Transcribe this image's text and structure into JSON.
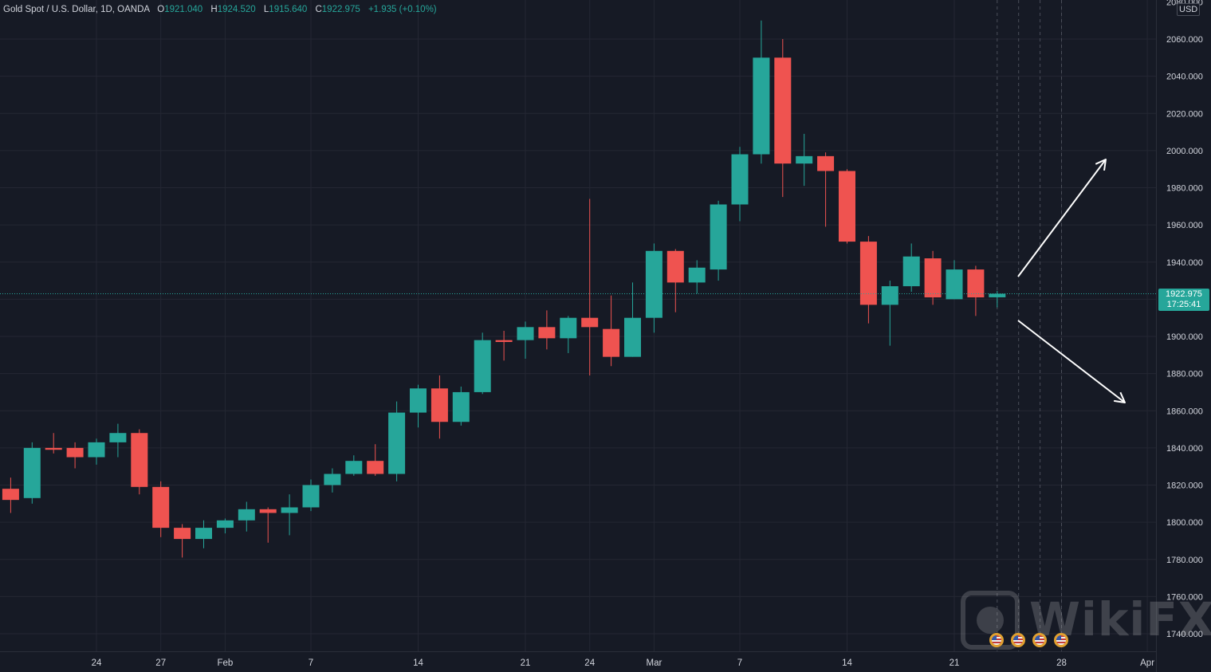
{
  "legend": {
    "symbol": "Gold Spot / U.S. Dollar, 1D, OANDA",
    "o_label": "O",
    "o_value": "1921.040",
    "h_label": "H",
    "h_value": "1924.520",
    "l_label": "L",
    "l_value": "1915.640",
    "c_label": "C",
    "c_value": "1922.975",
    "change": "+1.935 (+0.10%)"
  },
  "price_axis": {
    "currency": "USD",
    "last_price": "1922.975",
    "countdown": "17:25:41"
  },
  "watermark": {
    "text": "WikiFX"
  },
  "colors": {
    "background": "#161a25",
    "up": "#26a69a",
    "down": "#ef5350",
    "grid": "#242733",
    "text": "#d1d4dc",
    "arrow": "#ffffff"
  },
  "chart_data": {
    "type": "candlestick",
    "symbol": "Gold Spot / U.S. Dollar",
    "interval": "1D",
    "ylim": [
      1730,
      2085
    ],
    "y_ticks": [
      1740,
      1760,
      1780,
      1800,
      1820,
      1840,
      1860,
      1880,
      1900,
      1920,
      1940,
      1960,
      1980,
      2000,
      2020,
      2040,
      2060
    ],
    "x_ticks": [
      {
        "label": "24",
        "date": "2022-01-24"
      },
      {
        "label": "27",
        "date": "2022-01-27"
      },
      {
        "label": "Feb",
        "date": "2022-02-01"
      },
      {
        "label": "7",
        "date": "2022-02-07"
      },
      {
        "label": "14",
        "date": "2022-02-14"
      },
      {
        "label": "21",
        "date": "2022-02-21"
      },
      {
        "label": "24",
        "date": "2022-02-24"
      },
      {
        "label": "Mar",
        "date": "2022-03-01"
      },
      {
        "label": "7",
        "date": "2022-03-07"
      },
      {
        "label": "14",
        "date": "2022-03-14"
      },
      {
        "label": "21",
        "date": "2022-03-21"
      },
      {
        "label": "28",
        "date": "2022-03-28"
      },
      {
        "label": "Apr",
        "date": "2022-04-01"
      }
    ],
    "last_price": 1922.975,
    "candles": [
      {
        "date": "2022-01-18",
        "o": 1818,
        "h": 1824,
        "l": 1805,
        "c": 1812
      },
      {
        "date": "2022-01-19",
        "o": 1813,
        "h": 1843,
        "l": 1810,
        "c": 1840
      },
      {
        "date": "2022-01-20",
        "o": 1840,
        "h": 1848,
        "l": 1837,
        "c": 1839
      },
      {
        "date": "2022-01-21",
        "o": 1840,
        "h": 1843,
        "l": 1829,
        "c": 1835
      },
      {
        "date": "2022-01-24",
        "o": 1835,
        "h": 1845,
        "l": 1831,
        "c": 1843
      },
      {
        "date": "2022-01-25",
        "o": 1843,
        "h": 1853,
        "l": 1835,
        "c": 1848
      },
      {
        "date": "2022-01-26",
        "o": 1848,
        "h": 1850,
        "l": 1815,
        "c": 1819
      },
      {
        "date": "2022-01-27",
        "o": 1819,
        "h": 1822,
        "l": 1792,
        "c": 1797
      },
      {
        "date": "2022-01-28",
        "o": 1797,
        "h": 1799,
        "l": 1781,
        "c": 1791
      },
      {
        "date": "2022-01-31",
        "o": 1791,
        "h": 1801,
        "l": 1786,
        "c": 1797
      },
      {
        "date": "2022-02-01",
        "o": 1797,
        "h": 1802,
        "l": 1794,
        "c": 1801
      },
      {
        "date": "2022-02-02",
        "o": 1801,
        "h": 1811,
        "l": 1795,
        "c": 1807
      },
      {
        "date": "2022-02-03",
        "o": 1807,
        "h": 1808,
        "l": 1789,
        "c": 1805
      },
      {
        "date": "2022-02-04",
        "o": 1805,
        "h": 1815,
        "l": 1793,
        "c": 1808
      },
      {
        "date": "2022-02-07",
        "o": 1808,
        "h": 1823,
        "l": 1806,
        "c": 1820
      },
      {
        "date": "2022-02-08",
        "o": 1820,
        "h": 1829,
        "l": 1816,
        "c": 1826
      },
      {
        "date": "2022-02-09",
        "o": 1826,
        "h": 1836,
        "l": 1825,
        "c": 1833
      },
      {
        "date": "2022-02-10",
        "o": 1833,
        "h": 1842,
        "l": 1825,
        "c": 1826
      },
      {
        "date": "2022-02-11",
        "o": 1826,
        "h": 1865,
        "l": 1822,
        "c": 1859
      },
      {
        "date": "2022-02-14",
        "o": 1859,
        "h": 1874,
        "l": 1851,
        "c": 1872
      },
      {
        "date": "2022-02-15",
        "o": 1872,
        "h": 1879,
        "l": 1845,
        "c": 1854
      },
      {
        "date": "2022-02-16",
        "o": 1854,
        "h": 1873,
        "l": 1852,
        "c": 1870
      },
      {
        "date": "2022-02-17",
        "o": 1870,
        "h": 1902,
        "l": 1869,
        "c": 1898
      },
      {
        "date": "2022-02-18",
        "o": 1898,
        "h": 1903,
        "l": 1887,
        "c": 1897
      },
      {
        "date": "2022-02-21",
        "o": 1898,
        "h": 1908,
        "l": 1888,
        "c": 1905
      },
      {
        "date": "2022-02-22",
        "o": 1905,
        "h": 1914,
        "l": 1893,
        "c": 1899
      },
      {
        "date": "2022-02-23",
        "o": 1899,
        "h": 1911,
        "l": 1891,
        "c": 1910
      },
      {
        "date": "2022-02-24",
        "o": 1910,
        "h": 1974,
        "l": 1879,
        "c": 1905
      },
      {
        "date": "2022-02-25",
        "o": 1904,
        "h": 1922,
        "l": 1884,
        "c": 1889
      },
      {
        "date": "2022-02-28",
        "o": 1889,
        "h": 1929,
        "l": 1889,
        "c": 1910
      },
      {
        "date": "2022-03-01",
        "o": 1910,
        "h": 1950,
        "l": 1902,
        "c": 1946
      },
      {
        "date": "2022-03-02",
        "o": 1946,
        "h": 1947,
        "l": 1913,
        "c": 1929
      },
      {
        "date": "2022-03-03",
        "o": 1929,
        "h": 1941,
        "l": 1923,
        "c": 1937
      },
      {
        "date": "2022-03-04",
        "o": 1936,
        "h": 1973,
        "l": 1930,
        "c": 1971
      },
      {
        "date": "2022-03-07",
        "o": 1971,
        "h": 2002,
        "l": 1962,
        "c": 1998
      },
      {
        "date": "2022-03-08",
        "o": 1998,
        "h": 2070,
        "l": 1993,
        "c": 2050
      },
      {
        "date": "2022-03-09",
        "o": 2050,
        "h": 2060,
        "l": 1975,
        "c": 1993
      },
      {
        "date": "2022-03-10",
        "o": 1993,
        "h": 2009,
        "l": 1981,
        "c": 1997
      },
      {
        "date": "2022-03-11",
        "o": 1997,
        "h": 1999,
        "l": 1959,
        "c": 1989
      },
      {
        "date": "2022-03-14",
        "o": 1989,
        "h": 1990,
        "l": 1950,
        "c": 1951
      },
      {
        "date": "2022-03-15",
        "o": 1951,
        "h": 1954,
        "l": 1907,
        "c": 1917
      },
      {
        "date": "2022-03-16",
        "o": 1917,
        "h": 1930,
        "l": 1895,
        "c": 1927
      },
      {
        "date": "2022-03-17",
        "o": 1927,
        "h": 1950,
        "l": 1924,
        "c": 1943
      },
      {
        "date": "2022-03-18",
        "o": 1942,
        "h": 1946,
        "l": 1917,
        "c": 1921
      },
      {
        "date": "2022-03-21",
        "o": 1920,
        "h": 1941,
        "l": 1920,
        "c": 1936
      },
      {
        "date": "2022-03-22",
        "o": 1936,
        "h": 1938,
        "l": 1911,
        "c": 1921
      },
      {
        "date": "2022-03-23",
        "o": 1921.04,
        "h": 1924.52,
        "l": 1915.64,
        "c": 1922.975
      }
    ],
    "annotations": [
      {
        "type": "arrow",
        "direction": "up"
      },
      {
        "type": "arrow",
        "direction": "down"
      }
    ],
    "grid": true
  }
}
